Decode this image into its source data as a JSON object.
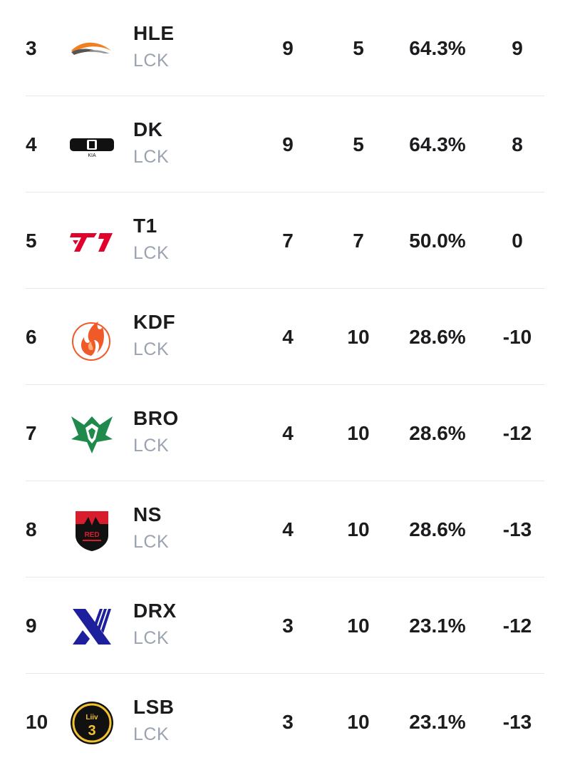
{
  "standings": {
    "rows": [
      {
        "rank": "3",
        "logo": "hle-logo",
        "team": "HLE",
        "league": "LCK",
        "wins": "9",
        "losses": "5",
        "win_rate": "64.3%",
        "diff": "9"
      },
      {
        "rank": "4",
        "logo": "dk-logo",
        "team": "DK",
        "league": "LCK",
        "wins": "9",
        "losses": "5",
        "win_rate": "64.3%",
        "diff": "8"
      },
      {
        "rank": "5",
        "logo": "t1-logo",
        "team": "T1",
        "league": "LCK",
        "wins": "7",
        "losses": "7",
        "win_rate": "50.0%",
        "diff": "0"
      },
      {
        "rank": "6",
        "logo": "kdf-logo",
        "team": "KDF",
        "league": "LCK",
        "wins": "4",
        "losses": "10",
        "win_rate": "28.6%",
        "diff": "-10"
      },
      {
        "rank": "7",
        "logo": "bro-logo",
        "team": "BRO",
        "league": "LCK",
        "wins": "4",
        "losses": "10",
        "win_rate": "28.6%",
        "diff": "-12"
      },
      {
        "rank": "8",
        "logo": "ns-logo",
        "team": "NS",
        "league": "LCK",
        "wins": "4",
        "losses": "10",
        "win_rate": "28.6%",
        "diff": "-13"
      },
      {
        "rank": "9",
        "logo": "drx-logo",
        "team": "DRX",
        "league": "LCK",
        "wins": "3",
        "losses": "10",
        "win_rate": "23.1%",
        "diff": "-12"
      },
      {
        "rank": "10",
        "logo": "lsb-logo",
        "team": "LSB",
        "league": "LCK",
        "wins": "3",
        "losses": "10",
        "win_rate": "23.1%",
        "diff": "-13"
      }
    ]
  }
}
